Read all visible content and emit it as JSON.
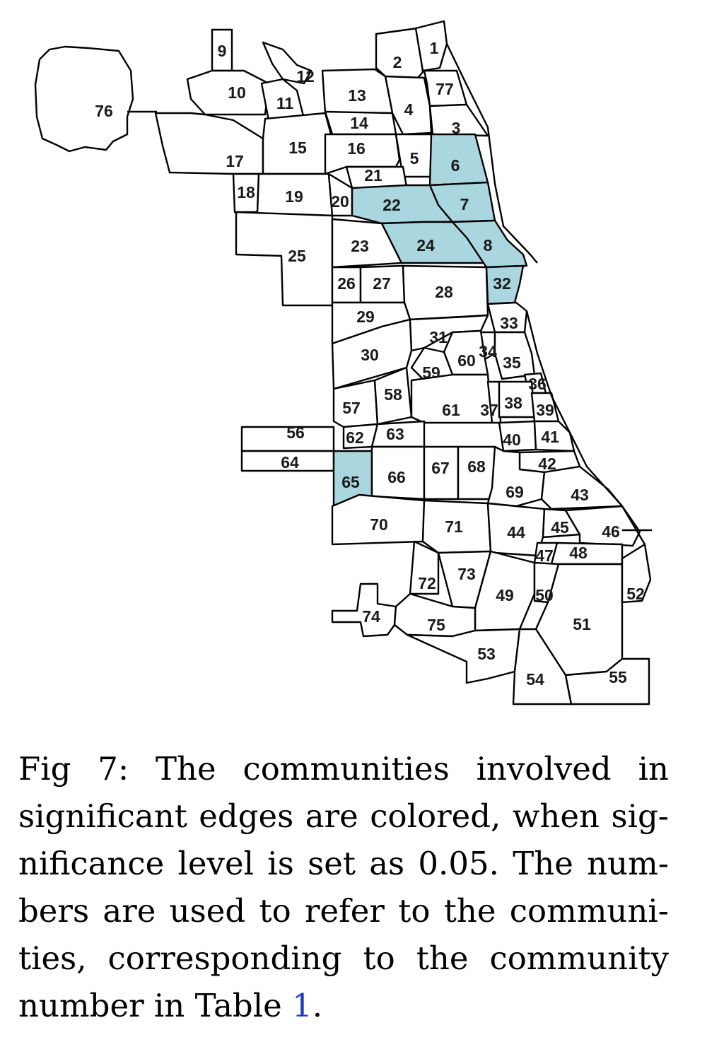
{
  "highlight_color": "#a9d6df",
  "highlighted_communities": [
    "6",
    "7",
    "8",
    "22",
    "24",
    "32",
    "65"
  ],
  "community_labels": [
    "1",
    "2",
    "3",
    "4",
    "5",
    "6",
    "7",
    "8",
    "9",
    "10",
    "11",
    "12",
    "13",
    "14",
    "15",
    "16",
    "17",
    "18",
    "19",
    "20",
    "21",
    "22",
    "23",
    "24",
    "25",
    "26",
    "27",
    "28",
    "29",
    "30",
    "31",
    "32",
    "33",
    "34",
    "35",
    "36",
    "37",
    "38",
    "39",
    "40",
    "41",
    "42",
    "43",
    "44",
    "45",
    "46",
    "47",
    "48",
    "49",
    "50",
    "51",
    "52",
    "53",
    "54",
    "55",
    "56",
    "57",
    "58",
    "59",
    "60",
    "61",
    "62",
    "63",
    "64",
    "65",
    "66",
    "67",
    "68",
    "69",
    "70",
    "71",
    "72",
    "73",
    "74",
    "75",
    "76",
    "77"
  ],
  "caption": {
    "line1": "Fig 7: The communities involved in",
    "line2": "significant edges are colored, when sig-",
    "line3": "nificance level is set as 0.05. The num-",
    "line4": "bers are used to refer to the communi-",
    "line5": "ties, corresponding to the community",
    "line6_pre": "number in Table ",
    "line6_ref": "1",
    "line6_post": "."
  }
}
